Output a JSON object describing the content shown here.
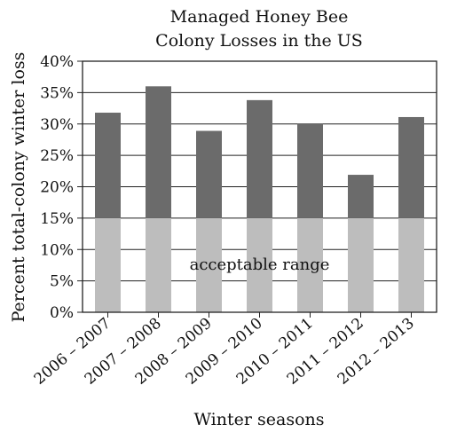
{
  "chart_data": {
    "type": "bar",
    "title_lines": [
      "Managed Honey Bee",
      "Colony Losses in the US"
    ],
    "xlabel": "Winter seasons",
    "ylabel": "Percent total-colony winter loss",
    "categories": [
      "2006 – 2007",
      "2007 – 2008",
      "2008 – 2009",
      "2009 – 2010",
      "2010 – 2011",
      "2011 – 2012",
      "2012 – 2013"
    ],
    "values": [
      31.8,
      36.0,
      28.9,
      33.8,
      30.0,
      21.9,
      31.1
    ],
    "ylim": [
      0,
      40
    ],
    "yticks": [
      0,
      5,
      10,
      15,
      20,
      25,
      30,
      35,
      40
    ],
    "ytick_labels": [
      "0%",
      "5%",
      "10%",
      "15%",
      "20%",
      "25%",
      "30%",
      "35%",
      "40%"
    ],
    "grid": "horizontal",
    "acceptable_threshold": 15,
    "acceptable_label": "acceptable range",
    "colors": {
      "bar_above": "#6b6b6b",
      "bar_below": "#bdbdbd",
      "grid": "#222222"
    }
  }
}
